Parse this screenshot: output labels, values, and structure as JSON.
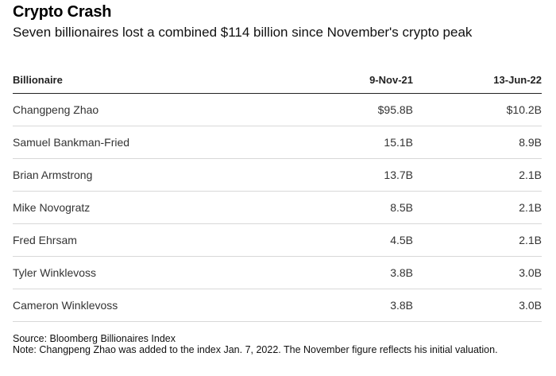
{
  "title": "Crypto Crash",
  "subtitle": "Seven billionaires lost a combined $114 billion since November's crypto peak",
  "chart_data": {
    "type": "table",
    "columns": [
      "Billionaire",
      "9-Nov-21",
      "13-Jun-22"
    ],
    "rows": [
      [
        "Changpeng Zhao",
        "$95.8B",
        "$10.2B"
      ],
      [
        "Samuel Bankman-Fried",
        "15.1B",
        "8.9B"
      ],
      [
        "Brian Armstrong",
        "13.7B",
        "2.1B"
      ],
      [
        "Mike Novogratz",
        "8.5B",
        "2.1B"
      ],
      [
        "Fred Ehrsam",
        "4.5B",
        "2.1B"
      ],
      [
        "Tyler Winklevoss",
        "3.8B",
        "3.0B"
      ],
      [
        "Cameron Winklevoss",
        "3.8B",
        "3.0B"
      ]
    ]
  },
  "footer": {
    "source": "Source: Bloomberg Billionaires Index",
    "note": "Note: Changpeng Zhao was added to the index Jan. 7, 2022. The November figure reflects his initial valuation."
  }
}
